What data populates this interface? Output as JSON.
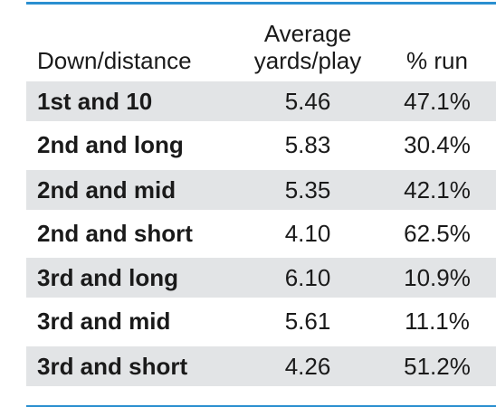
{
  "table": {
    "headers": {
      "col1": "Down/distance",
      "col2_line1": "Average",
      "col2_line2": "yards/play",
      "col3": "% run"
    },
    "rows": [
      {
        "label": "1st and 10",
        "avg": "5.46",
        "pct": "47.1%"
      },
      {
        "label": "2nd and long",
        "avg": "5.83",
        "pct": "30.4%"
      },
      {
        "label": "2nd and mid",
        "avg": "5.35",
        "pct": "42.1%"
      },
      {
        "label": "2nd and short",
        "avg": "4.10",
        "pct": "62.5%"
      },
      {
        "label": "3rd and long",
        "avg": "6.10",
        "pct": "10.9%"
      },
      {
        "label": "3rd and mid",
        "avg": "5.61",
        "pct": "11.1%"
      },
      {
        "label": "3rd and short",
        "avg": "4.26",
        "pct": "51.2%"
      }
    ]
  },
  "colors": {
    "rule": "#2a8fd0",
    "shaded_row": "#e2e4e6",
    "text": "#1a1a1a"
  }
}
